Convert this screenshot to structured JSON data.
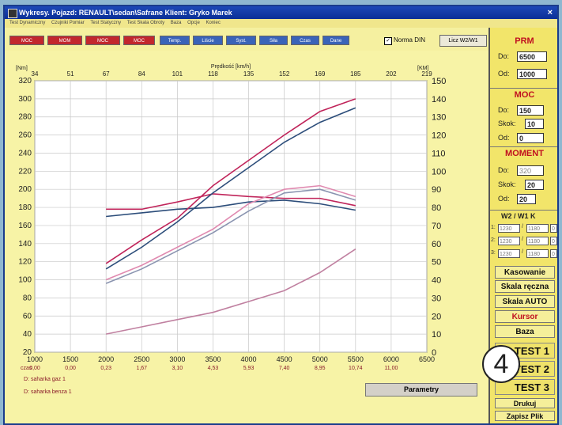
{
  "window": {
    "title": "Wykresy. Pojazd: RENAULT\\sedan\\Safrane  Klient: Gryko Marek",
    "close": "×"
  },
  "menu": [
    "Test Dynamiczny",
    "Czujniki Pomiar",
    "Test Statyczny",
    "Test Skala Obroty",
    "Baza",
    "Opcje",
    "Koniec"
  ],
  "toolbar": {
    "buttons": [
      "MOC",
      "MOM",
      "MOC",
      "MOC",
      "Temp.",
      "Liście",
      "Syst.",
      "Siła",
      "Czas",
      "Dane"
    ],
    "norma_label": "Norma DIN",
    "norma_checked": "✓",
    "ratio_button": "Licz W2/W1"
  },
  "chart_data": {
    "type": "line",
    "title": "Prędkość [km/h]",
    "left_axis_label": "[Nm]",
    "right_axis_label": "[KM]",
    "top_ticks": [
      34,
      51,
      67,
      84,
      101,
      118,
      135,
      152,
      169,
      185,
      202,
      219
    ],
    "x_ticks": [
      1000,
      1500,
      2000,
      2500,
      3000,
      3500,
      4000,
      4500,
      5000,
      5500,
      6000,
      6500
    ],
    "xlim": [
      1000,
      6500
    ],
    "ylim_left": [
      20,
      320
    ],
    "ylim_right": [
      0,
      150
    ],
    "yleft_ticks": [
      20,
      40,
      60,
      80,
      100,
      120,
      140,
      160,
      180,
      200,
      220,
      240,
      260,
      280,
      300,
      320
    ],
    "yright_ticks": [
      0,
      10,
      20,
      30,
      40,
      50,
      60,
      70,
      80,
      90,
      100,
      110,
      120,
      130,
      140,
      150
    ],
    "time_label": "czas",
    "time_values": [
      "0,00",
      "0,00",
      "0,23",
      "1,67",
      "3,10",
      "4,53",
      "5,93",
      "7,40",
      "8,95",
      "10,74",
      "11,00"
    ],
    "series": [
      {
        "axis": "left",
        "color": "#c0245a",
        "x": [
          2000,
          2500,
          3000,
          3500,
          4000,
          4500,
          5000,
          5500
        ],
        "values": [
          178,
          178,
          186,
          195,
          192,
          190,
          190,
          182
        ]
      },
      {
        "axis": "left",
        "color": "#2c4d7a",
        "x": [
          2000,
          2500,
          3000,
          3500,
          4000,
          4500,
          5000,
          5500
        ],
        "values": [
          170,
          174,
          178,
          180,
          186,
          188,
          184,
          177
        ]
      },
      {
        "axis": "right",
        "color": "#c0245a",
        "x": [
          2000,
          2500,
          3000,
          3500,
          4000,
          4500,
          5000,
          5500
        ],
        "values": [
          49,
          62,
          74,
          92,
          106,
          120,
          133,
          140
        ]
      },
      {
        "axis": "right",
        "color": "#2c4d7a",
        "x": [
          2000,
          2500,
          3000,
          3500,
          4000,
          4500,
          5000,
          5500
        ],
        "values": [
          46,
          58,
          72,
          88,
          102,
          116,
          127,
          135
        ]
      },
      {
        "axis": "right",
        "color": "#e08ab0",
        "x": [
          2000,
          2500,
          3000,
          3500,
          4000,
          4500,
          5000,
          5500
        ],
        "values": [
          40,
          48,
          58,
          68,
          82,
          90,
          92,
          86
        ]
      },
      {
        "axis": "right",
        "color": "#8a94b0",
        "x": [
          2000,
          2500,
          3000,
          3500,
          4000,
          4500,
          5000,
          5500
        ],
        "values": [
          38,
          46,
          56,
          66,
          78,
          88,
          90,
          84
        ]
      },
      {
        "axis": "right",
        "color": "#c080a0",
        "x": [
          2000,
          2500,
          3000,
          3500,
          4000,
          4500,
          5000,
          5500
        ],
        "values": [
          10,
          14,
          18,
          22,
          28,
          34,
          44,
          57
        ]
      }
    ],
    "legend": [
      {
        "label": "D: saharka gaz 1",
        "color": "#8a1a2a"
      },
      {
        "label": "D: saharka benza 1",
        "color": "#8a1a2a"
      }
    ]
  },
  "parametry_button": "Parametry",
  "side": {
    "prm": {
      "title": "PRM",
      "do_label": "Do:",
      "do_value": "6500",
      "od_label": "Od:",
      "od_value": "1000"
    },
    "moc": {
      "title": "MOC",
      "do_label": "Do:",
      "do_value": "150",
      "skok_label": "Skok:",
      "skok_value": "10",
      "od_label": "Od:",
      "od_value": "0"
    },
    "moment": {
      "title": "MOMENT",
      "do_label": "Do:",
      "do_value": "320",
      "skok_label": "Skok:",
      "skok_value": "20",
      "od_label": "Od:",
      "od_value": "20"
    },
    "w_header": "W2 / W1   K",
    "w_rows": [
      {
        "n": "1:",
        "a": "1230",
        "b": "1180",
        "k": "0"
      },
      {
        "n": "2:",
        "a": "1230",
        "b": "1180",
        "k": "0"
      },
      {
        "n": "3:",
        "a": "1230",
        "b": "1180",
        "k": "0"
      }
    ],
    "buttons": {
      "kasowanie": "Kasowanie",
      "skala_reczna": "Skala ręczna",
      "skala_auto": "Skala AUTO",
      "kursor": "Kursor",
      "baza": "Baza"
    },
    "tests": [
      "TEST 1",
      "TEST 2",
      "TEST 3"
    ],
    "drukuj": "Drukuj",
    "zapisz": "Zapisz Plik"
  },
  "badge": "4"
}
